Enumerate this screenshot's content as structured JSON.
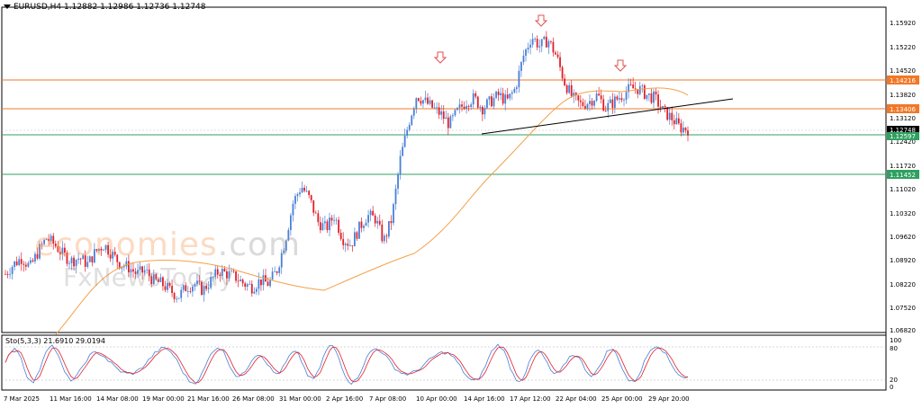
{
  "header": {
    "symbol": "EURUSD,H4",
    "open": "1.12882",
    "high": "1.12986",
    "low": "1.12736",
    "close": "1.12748"
  },
  "stochastic": {
    "label": "Sto(5,3,3)",
    "main": "21.6910",
    "signal": "29.0194",
    "levels": [
      "100",
      "80",
      "20",
      "0"
    ]
  },
  "watermark": {
    "brand": "economies",
    "brand_suffix": ".com",
    "brand2": "FxNewsToday"
  },
  "colors": {
    "bull": "#4a7fd6",
    "bear": "#e0202a",
    "ma": "#f5a04a",
    "resistance": "#f07828",
    "support": "#2fa060",
    "arrow": "#e05050"
  },
  "chart_data": {
    "type": "candlestick",
    "y_ticks": [
      "1.15920",
      "1.15220",
      "1.14520",
      "1.13820",
      "1.13120",
      "1.12420",
      "1.11720",
      "1.11020",
      "1.10320",
      "1.09620",
      "1.08920",
      "1.08220",
      "1.07520",
      "1.06820"
    ],
    "x_ticks": [
      "7 Mar 2025",
      "11 Mar 16:00",
      "14 Mar 08:00",
      "19 Mar 00:00",
      "21 Mar 16:00",
      "26 Mar 08:00",
      "31 Mar 00:00",
      "2 Apr 16:00",
      "7 Apr 08:00",
      "10 Apr 00:00",
      "14 Apr 16:00",
      "17 Apr 12:00",
      "22 Apr 04:00",
      "25 Apr 00:00",
      "29 Apr 20:00"
    ],
    "price_labels": [
      {
        "value": "1.14216",
        "kind": "resistance"
      },
      {
        "value": "1.13406",
        "kind": "resistance"
      },
      {
        "value": "1.12748",
        "kind": "current"
      },
      {
        "value": "1.12597",
        "kind": "support"
      },
      {
        "value": "1.11452",
        "kind": "support"
      }
    ],
    "levels": [
      1.14216,
      1.13406,
      1.12597,
      1.11452
    ],
    "ylim": [
      1.065,
      1.165
    ],
    "trendline": {
      "from": [
        1.1255,
        "14 Apr"
      ],
      "to": [
        1.1372,
        "1 May"
      ]
    },
    "arrows": [
      1.1478,
      1.1598,
      1.1455
    ],
    "close_path": [
      1.083,
      1.086,
      1.088,
      1.085,
      1.09,
      1.094,
      1.092,
      1.089,
      1.087,
      1.088,
      1.086,
      1.09,
      1.092,
      1.089,
      1.086,
      1.085,
      1.083,
      1.084,
      1.081,
      1.08,
      1.078,
      1.076,
      1.079,
      1.08,
      1.078,
      1.081,
      1.084,
      1.083,
      1.082,
      1.08,
      1.079,
      1.081,
      1.08,
      1.084,
      1.093,
      1.105,
      1.11,
      1.106,
      1.099,
      1.097,
      1.101,
      1.094,
      1.092,
      1.097,
      1.101,
      1.1,
      1.093,
      1.1,
      1.118,
      1.129,
      1.138,
      1.136,
      1.134,
      1.132,
      1.129,
      1.133,
      1.136,
      1.137,
      1.134,
      1.136,
      1.138,
      1.136,
      1.14,
      1.15,
      1.156,
      1.153,
      1.155,
      1.15,
      1.142,
      1.137,
      1.135,
      1.136,
      1.138,
      1.134,
      1.136,
      1.138,
      1.14,
      1.14,
      1.138,
      1.137,
      1.133,
      1.131,
      1.128,
      1.1275
    ]
  }
}
